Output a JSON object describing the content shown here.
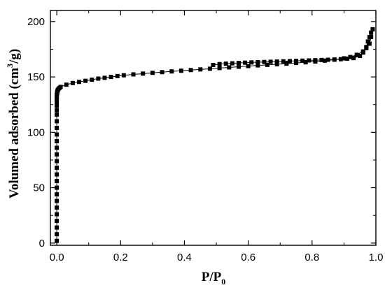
{
  "chart_data": {
    "type": "scatter",
    "title": "",
    "xlabel": "P/P",
    "xlabel_subscript": "0",
    "ylabel": "Volumed adsorbed (cm",
    "ylabel_superscript": "3",
    "ylabel_suffix": "/g)",
    "xlim": [
      -0.02,
      1.0
    ],
    "ylim": [
      -2,
      210
    ],
    "xticks": [
      0.0,
      0.2,
      0.4,
      0.6,
      0.8,
      1.0
    ],
    "xtick_labels": [
      "0.0",
      "0.2",
      "0.4",
      "0.6",
      "0.8",
      "1.0"
    ],
    "yticks": [
      0,
      50,
      100,
      150,
      200
    ],
    "ytick_labels": [
      "0",
      "50",
      "100",
      "150",
      "200"
    ],
    "grid": false,
    "legend": "none",
    "series": [
      {
        "role": "adsorption",
        "color": "#000000",
        "marker": "square",
        "x": [
          0.0,
          0.0,
          0.0,
          0.0,
          0.0,
          0.0,
          0.0,
          0.0,
          0.0,
          0.0,
          0.0,
          0.0,
          0.0,
          0.0,
          0.0,
          0.0,
          0.0,
          0.0,
          0.0,
          0.0,
          0.0,
          0.0,
          0.0,
          0.0,
          0.0,
          0.0,
          0.001,
          0.001,
          0.002,
          0.003,
          0.005,
          0.008,
          0.012,
          0.03,
          0.05,
          0.07,
          0.09,
          0.11,
          0.13,
          0.15,
          0.17,
          0.19,
          0.21,
          0.24,
          0.27,
          0.3,
          0.33,
          0.36,
          0.39,
          0.42,
          0.45,
          0.48,
          0.51,
          0.54,
          0.57,
          0.6,
          0.63,
          0.66,
          0.69,
          0.72,
          0.75,
          0.78,
          0.81,
          0.84,
          0.87,
          0.9,
          0.92,
          0.94,
          0.96,
          0.97,
          0.98,
          0.985,
          0.99
        ],
        "y": [
          2,
          8,
          14,
          20,
          26,
          32,
          38,
          44,
          50,
          56,
          62,
          68,
          74,
          80,
          86,
          92,
          98,
          104,
          110,
          116,
          120,
          124,
          127,
          130,
          132,
          134,
          135,
          136,
          137,
          138,
          139,
          140,
          141,
          143,
          144.5,
          145.5,
          146.5,
          147.5,
          148.5,
          149.2,
          150,
          150.8,
          151.5,
          152.3,
          153,
          153.7,
          154.3,
          155,
          155.6,
          156.2,
          156.8,
          157.4,
          158,
          158.6,
          159.2,
          159.8,
          160.4,
          160.9,
          161.5,
          162,
          162.6,
          163.2,
          163.9,
          164.7,
          165.6,
          166.8,
          168,
          170,
          173,
          176,
          180,
          186,
          193
        ]
      },
      {
        "role": "desorption",
        "color": "#000000",
        "marker": "square",
        "x": [
          0.99,
          0.985,
          0.98,
          0.975,
          0.97,
          0.96,
          0.95,
          0.93,
          0.91,
          0.89,
          0.87,
          0.85,
          0.83,
          0.81,
          0.79,
          0.77,
          0.75,
          0.73,
          0.71,
          0.69,
          0.67,
          0.65,
          0.63,
          0.61,
          0.59,
          0.57,
          0.55,
          0.53,
          0.51,
          0.49
        ],
        "y": [
          193,
          190,
          186,
          182,
          177,
          172,
          169,
          167,
          166.5,
          166,
          165.7,
          165.5,
          165.3,
          165.1,
          164.9,
          164.7,
          164.5,
          164.3,
          164.1,
          163.9,
          163.7,
          163.5,
          163.3,
          163.1,
          162.9,
          162.6,
          162.3,
          162,
          161.6,
          160.8
        ]
      }
    ]
  }
}
